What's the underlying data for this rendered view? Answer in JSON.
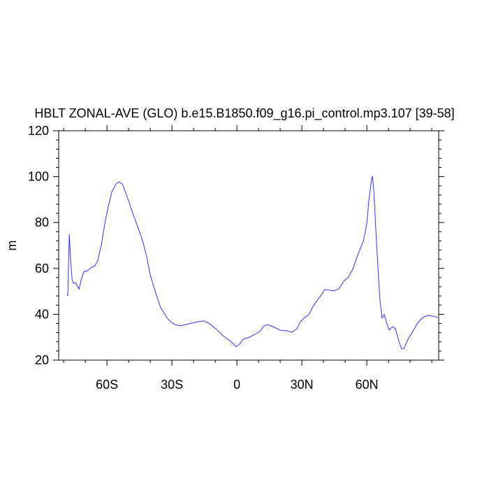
{
  "chart_data": {
    "type": "line",
    "title": "HBLT ZONAL-AVE (GLO) b.e15.B1850.f09_g16.pi_control.mp3.107 [39-58]",
    "y_label": "m",
    "color": "#3333ff",
    "x": [
      -78.4,
      -78.1,
      -77.4,
      -76.8,
      -76.1,
      -75.5,
      -74.5,
      -72.9,
      -71.9,
      -70.6,
      -69.4,
      -67.4,
      -65.5,
      -64.2,
      -62.6,
      -61,
      -59.4,
      -57.7,
      -55.8,
      -54.5,
      -52.9,
      -51.3,
      -49.7,
      -48.1,
      -46.5,
      -44.8,
      -43.2,
      -41.6,
      -40,
      -38.4,
      -36.8,
      -35.2,
      -33.5,
      -31.9,
      -30.3,
      -28.7,
      -26.1,
      -23.5,
      -20.6,
      -17.4,
      -15.2,
      -12.6,
      -9.4,
      -6.1,
      -2.9,
      -0.3,
      1,
      2.9,
      5.2,
      8.4,
      10.6,
      12.6,
      14.2,
      16.5,
      18.1,
      19.7,
      22.9,
      25.5,
      27.7,
      29.4,
      31,
      33.2,
      35.2,
      37.4,
      39,
      40.6,
      42.9,
      44.8,
      47.1,
      49.4,
      51.3,
      53.5,
      55.2,
      56.8,
      58.4,
      60,
      61,
      62.3,
      62.6,
      63.2,
      64.2,
      65.2,
      66.1,
      67.1,
      68.1,
      69,
      70.3,
      71.9,
      73.2,
      74.5,
      76.1,
      77.1,
      79,
      81,
      83.5,
      85.8,
      88.1,
      90.6,
      92.6
    ],
    "values": [
      48.7,
      48,
      74.9,
      64,
      55,
      53.5,
      53.8,
      51,
      55,
      58.7,
      58.7,
      60.2,
      61.2,
      63.6,
      70.3,
      79.5,
      87,
      93.5,
      96.8,
      97.7,
      96.8,
      92.9,
      88.6,
      84,
      80,
      75.5,
      70.9,
      64.8,
      57.2,
      52,
      47.4,
      42.9,
      40.4,
      38,
      36.5,
      35.5,
      35,
      35.5,
      36.2,
      36.8,
      37.1,
      35.9,
      33.4,
      30.4,
      28.2,
      25.8,
      26.7,
      29.1,
      29.8,
      31.3,
      32.5,
      35,
      35.5,
      34.6,
      34,
      33.1,
      32.8,
      32.2,
      33.7,
      36.8,
      38.3,
      39.8,
      43.5,
      46.5,
      48.4,
      50.8,
      50.5,
      50.2,
      51.1,
      54.5,
      56,
      59.6,
      64.2,
      68.2,
      71.8,
      79.5,
      90.1,
      99.3,
      100.2,
      94.7,
      76.4,
      59.6,
      45.9,
      38.3,
      39.8,
      36.8,
      33.1,
      34.6,
      33.7,
      29.1,
      24.9,
      24.9,
      29.1,
      32.2,
      36.2,
      38.6,
      39.5,
      39.2,
      38.6
    ],
    "xlim": [
      -82.3,
      93.2
    ],
    "ylim": [
      20,
      120
    ],
    "xticks": [
      {
        "value": -60,
        "label": "60S"
      },
      {
        "value": -30,
        "label": "30S"
      },
      0,
      {
        "value": 30,
        "label": "30N"
      },
      {
        "value": 60,
        "label": "60N"
      }
    ],
    "yticks": [
      20,
      40,
      60,
      80,
      100,
      120
    ],
    "xminorticks": [
      -80,
      -70,
      -50,
      -40,
      -20,
      -10,
      10,
      20,
      40,
      50,
      70,
      80,
      90
    ],
    "yminorticks": [
      24,
      28,
      32,
      36,
      44,
      48,
      52,
      56,
      64,
      68,
      72,
      76,
      84,
      88,
      92,
      96,
      104,
      108,
      112,
      116
    ]
  }
}
